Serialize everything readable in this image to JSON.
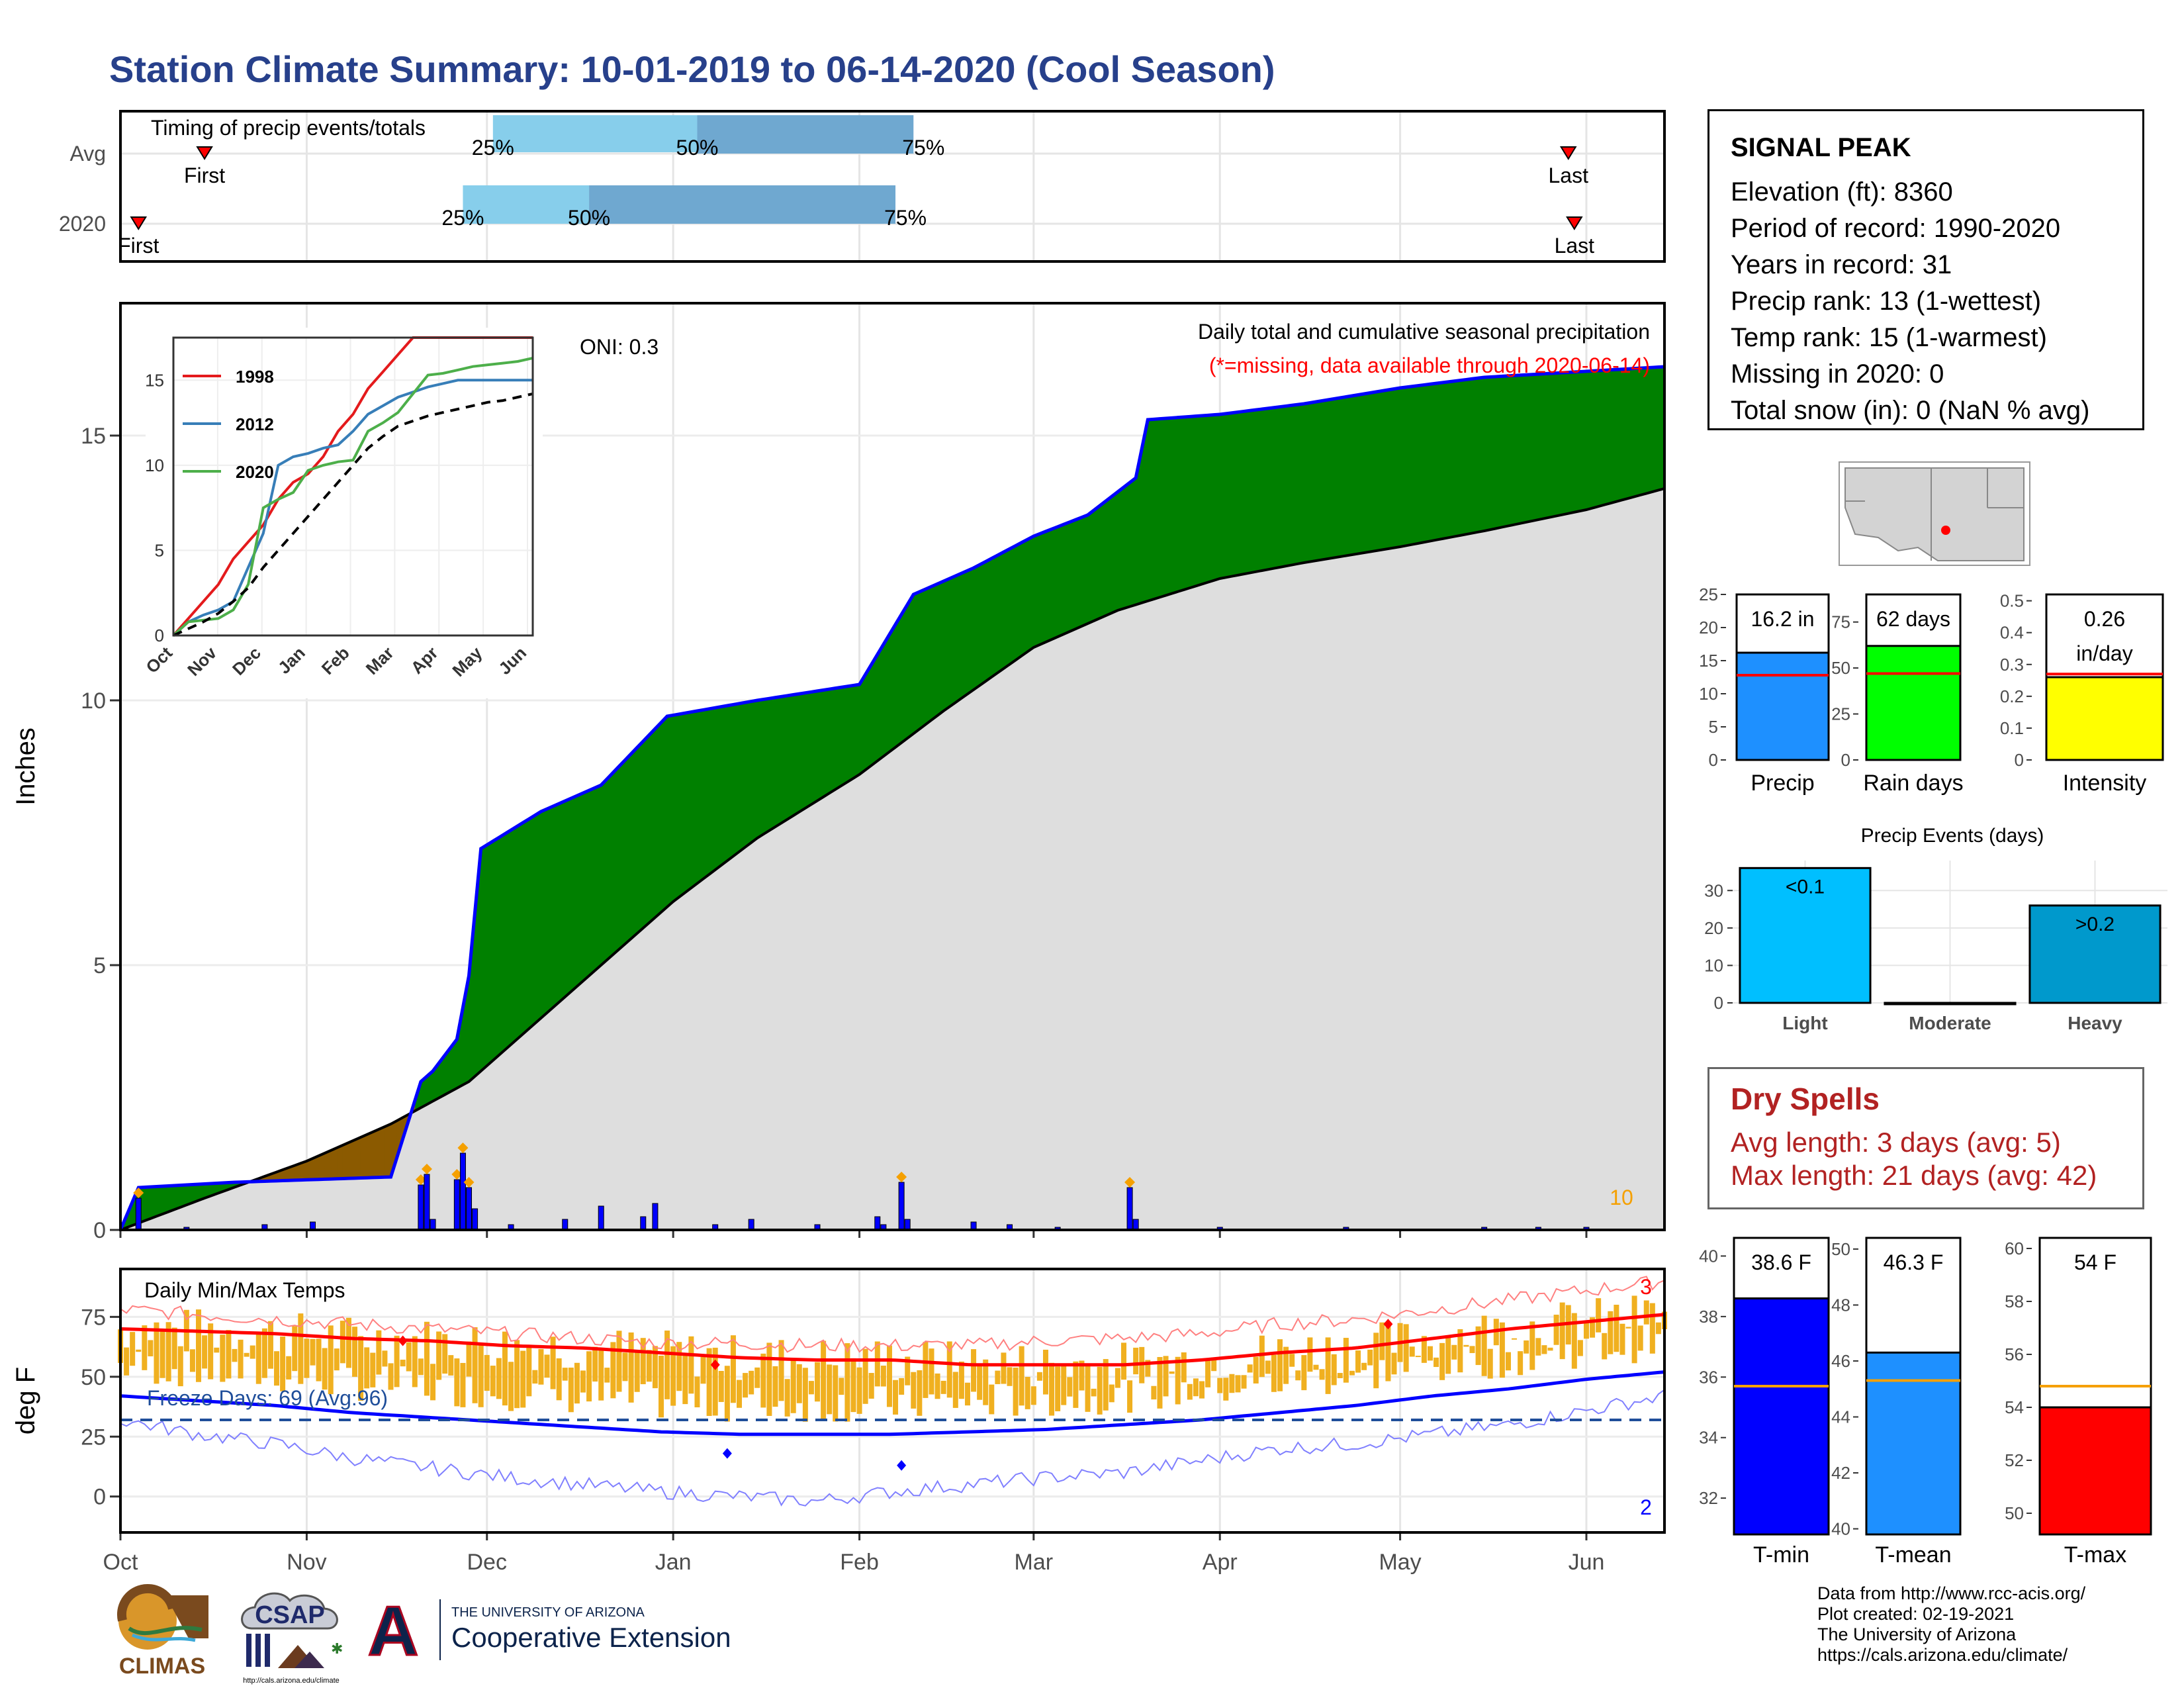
{
  "title": "Station Climate Summary: 10-01-2019 to 06-14-2020 (Cool Season)",
  "station": {
    "name": "SIGNAL PEAK",
    "lines": [
      "Elevation (ft): 8360",
      "Period of record: 1990-2020",
      "Years in record: 31",
      "Precip rank: 13 (1-wettest)",
      "Temp rank: 15 (1-warmest)",
      "Missing in 2020: 0",
      "Total snow (in): 0 (NaN % avg)"
    ]
  },
  "dry_spells": {
    "title": "Dry Spells",
    "avg_length": "Avg length: 3 days (avg: 5)",
    "max_length": "Max length: 21 days (avg: 42)"
  },
  "credits": [
    "Data from http://www.rcc-acis.org/",
    "Plot created: 02-19-2021",
    "The University of Arizona",
    "https://cals.arizona.edu/climate/"
  ],
  "logos": {
    "climas": "CLIMAS",
    "csap": "CSAP",
    "csap_url": "http://cals.arizona.edu/climate",
    "ua_small": "THE UNIVERSITY OF ARIZONA",
    "ua_big": "Cooperative Extension",
    "ua_letter": "A"
  },
  "colors": {
    "avg_cumulative": "#dedede",
    "above_avg": "#008000",
    "below_avg": "#8b5a00",
    "daily_precip": "#0000ff",
    "tmin": "#0000ff",
    "tmax": "#ff0000",
    "daily_range": "#f0b020",
    "quartile_light": "#87ceeb",
    "quartile_dark": "#6fa8d0"
  },
  "chart_data": [
    {
      "id": "timing",
      "type": "bar",
      "title": "Timing of precip events/totals",
      "rows": [
        {
          "label": "Avg",
          "first": "First",
          "last": "Last",
          "q25": "25%",
          "q50": "50%",
          "q75": "75%",
          "first_date": "2019-10-15",
          "q25_date": "2019-12-02",
          "q50_date": "2020-01-05",
          "q75_date": "2020-02-10",
          "last_date": "2020-05-29"
        },
        {
          "label": "2020",
          "first": "First",
          "last": "Last",
          "q25": "25%",
          "q50": "50%",
          "q75": "75%",
          "first_date": "2019-10-04",
          "q25_date": "2019-11-27",
          "q50_date": "2019-12-18",
          "q75_date": "2020-02-07",
          "last_date": "2020-05-30"
        }
      ]
    },
    {
      "id": "cumulative",
      "type": "area",
      "title": "Daily total and cumulative seasonal precipitation",
      "subtitle": "(*=missing, data available through 2020-06-14)",
      "ylabel": "Inches",
      "ylim": [
        0,
        17.5
      ],
      "yticks": [
        0,
        5,
        10,
        15
      ],
      "oni": "ONI: 0.3",
      "count_label": "10",
      "x_ticks": [
        "Oct",
        "Nov",
        "Dec",
        "Jan",
        "Feb",
        "Mar",
        "Apr",
        "May",
        "Jun"
      ],
      "x_tick_dates": [
        "2019-10-01",
        "2019-11-01",
        "2019-12-01",
        "2020-01-01",
        "2020-02-01",
        "2020-03-01",
        "2020-04-01",
        "2020-05-01",
        "2020-06-01"
      ],
      "series": [
        {
          "name": "Average cumulative",
          "x": [
            "2019-10-01",
            "2019-10-15",
            "2019-11-01",
            "2019-11-15",
            "2019-11-28",
            "2019-12-15",
            "2020-01-01",
            "2020-01-15",
            "2020-02-01",
            "2020-02-15",
            "2020-03-01",
            "2020-03-15",
            "2020-04-01",
            "2020-04-15",
            "2020-05-01",
            "2020-05-15",
            "2020-06-01",
            "2020-06-14"
          ],
          "y": [
            0,
            0.6,
            1.3,
            2.0,
            2.8,
            4.5,
            6.2,
            7.4,
            8.6,
            9.8,
            11.0,
            11.7,
            12.3,
            12.6,
            12.9,
            13.2,
            13.6,
            14.0
          ]
        },
        {
          "name": "2020 cumulative",
          "x": [
            "2019-10-01",
            "2019-10-04",
            "2019-10-20",
            "2019-11-15",
            "2019-11-20",
            "2019-11-22",
            "2019-11-26",
            "2019-11-28",
            "2019-11-30",
            "2019-12-10",
            "2019-12-20",
            "2019-12-31",
            "2020-01-15",
            "2020-02-01",
            "2020-02-10",
            "2020-02-20",
            "2020-03-01",
            "2020-03-10",
            "2020-03-18",
            "2020-03-20",
            "2020-04-01",
            "2020-04-15",
            "2020-05-01",
            "2020-05-15",
            "2020-06-14"
          ],
          "y": [
            0,
            0.8,
            0.9,
            1.0,
            2.8,
            3.0,
            3.6,
            4.8,
            7.2,
            7.9,
            8.4,
            9.7,
            10.0,
            10.3,
            12.0,
            12.5,
            13.1,
            13.5,
            14.2,
            15.3,
            15.4,
            15.6,
            15.9,
            16.1,
            16.3
          ]
        }
      ],
      "daily_precip": {
        "x": [
          "2019-10-04",
          "2019-10-12",
          "2019-10-25",
          "2019-11-02",
          "2019-11-20",
          "2019-11-21",
          "2019-11-22",
          "2019-11-26",
          "2019-11-27",
          "2019-11-28",
          "2019-11-29",
          "2019-12-05",
          "2019-12-14",
          "2019-12-20",
          "2019-12-27",
          "2019-12-29",
          "2020-01-08",
          "2020-01-14",
          "2020-01-25",
          "2020-02-04",
          "2020-02-05",
          "2020-02-08",
          "2020-02-09",
          "2020-02-20",
          "2020-02-26",
          "2020-03-05",
          "2020-03-17",
          "2020-03-18",
          "2020-04-01",
          "2020-04-22",
          "2020-05-15",
          "2020-05-24",
          "2020-06-01"
        ],
        "y": [
          0.6,
          0.05,
          0.1,
          0.15,
          0.85,
          1.05,
          0.2,
          0.95,
          1.45,
          0.8,
          0.4,
          0.1,
          0.2,
          0.45,
          0.25,
          0.5,
          0.1,
          0.2,
          0.1,
          0.25,
          0.1,
          0.9,
          0.2,
          0.15,
          0.1,
          0.05,
          0.8,
          0.2,
          0.05,
          0.05,
          0.05,
          0.05,
          0.05
        ]
      },
      "inset": {
        "type": "line",
        "yticks": [
          0,
          5,
          10,
          15
        ],
        "ylim": [
          0,
          17.5
        ],
        "x_ticks": [
          "Oct",
          "Nov",
          "Dec",
          "Jan",
          "Feb",
          "Mar",
          "Apr",
          "May",
          "Jun"
        ],
        "series": [
          {
            "name": "1998",
            "color": "#e41a1c",
            "y": [
              0,
              1,
              2,
              3,
              4.5,
              5.5,
              6.5,
              8,
              9,
              9.5,
              10.5,
              12,
              13,
              14.5,
              15.5,
              16.5,
              17.5,
              17.5,
              17.5,
              17.5,
              17.5,
              17.5,
              17.5,
              17.5,
              17.5
            ]
          },
          {
            "name": "2012",
            "color": "#377eb8",
            "y": [
              0,
              0.8,
              1.2,
              1.5,
              2,
              4,
              6,
              10,
              10.5,
              10.7,
              11,
              11.2,
              12,
              13,
              13.5,
              14,
              14.3,
              14.6,
              14.8,
              15,
              15,
              15,
              15,
              15,
              15
            ]
          },
          {
            "name": "2020",
            "color": "#4daf4a",
            "y": [
              0,
              0.8,
              0.9,
              1,
              1.5,
              3,
              7.5,
              8,
              8.4,
              9.7,
              10,
              10.2,
              10.3,
              12,
              12.5,
              13.1,
              14.2,
              15.3,
              15.4,
              15.6,
              15.8,
              15.9,
              16,
              16.1,
              16.3
            ]
          },
          {
            "name": "Average",
            "color": "#000000",
            "y": [
              0,
              0.4,
              0.8,
              1.3,
              2,
              2.8,
              4,
              5,
              6,
              7,
              8,
              9,
              10,
              11,
              11.7,
              12.3,
              12.6,
              12.9,
              13.1,
              13.3,
              13.5,
              13.7,
              13.8,
              14,
              14.2
            ]
          }
        ]
      }
    },
    {
      "id": "temps",
      "type": "line",
      "title": "Daily Min/Max Temps",
      "ylabel": "deg F",
      "ylim": [
        -15,
        95
      ],
      "yticks": [
        0,
        25,
        50,
        75
      ],
      "freeze_label": "Freeze Days: 69 (Avg:96)",
      "freeze_line": 32,
      "record_high_count": "3",
      "record_low_count": "2",
      "x_ticks": [
        "Oct",
        "Nov",
        "Dec",
        "Jan",
        "Feb",
        "Mar",
        "Apr",
        "May",
        "Jun"
      ],
      "series": [
        {
          "name": "Avg Tmax",
          "values": [
            70,
            69,
            68,
            66,
            65,
            63,
            62,
            60,
            58,
            57,
            57,
            55,
            55,
            55,
            57,
            60,
            62,
            66,
            70,
            73,
            76
          ]
        },
        {
          "name": "Avg Tmin",
          "values": [
            42,
            40,
            38,
            35,
            33,
            31,
            29,
            27,
            26,
            26,
            26,
            27,
            28,
            30,
            32,
            35,
            38,
            42,
            45,
            49,
            52
          ]
        },
        {
          "name": "Record Tmax",
          "values": [
            78,
            76,
            74,
            72,
            70,
            68,
            66,
            64,
            64,
            63,
            63,
            63,
            65,
            66,
            68,
            72,
            74,
            78,
            82,
            86,
            90
          ]
        },
        {
          "name": "Record Tmin",
          "values": [
            32,
            26,
            22,
            16,
            12,
            8,
            5,
            2,
            0,
            -2,
            2,
            5,
            8,
            10,
            15,
            20,
            22,
            26,
            30,
            36,
            42
          ]
        }
      ]
    },
    {
      "id": "summary-precip",
      "type": "bar",
      "categories": [
        "Precip",
        "Rain days",
        "Intensity"
      ],
      "panels": [
        {
          "category": "Precip",
          "value": 16.2,
          "label": "16.2 in",
          "avg": 12.8,
          "yticks": [
            0,
            5,
            10,
            15,
            20,
            25
          ],
          "ylim": [
            0,
            25
          ],
          "color": "#1e90ff"
        },
        {
          "category": "Rain days",
          "value": 62,
          "label": "62 days",
          "avg": 47,
          "yticks": [
            0,
            25,
            50,
            75
          ],
          "ylim": [
            0,
            90
          ],
          "color": "#00ff00"
        },
        {
          "category": "Intensity",
          "value": 0.26,
          "label": "0.26 in/day",
          "avg": 0.27,
          "yticks": [
            0.0,
            0.1,
            0.2,
            0.3,
            0.4,
            0.5
          ],
          "ylim": [
            0,
            0.52
          ],
          "color": "#ffff00"
        }
      ]
    },
    {
      "id": "precip-events",
      "type": "bar",
      "title": "Precip Events (days)",
      "categories": [
        "Light",
        "Moderate",
        "Heavy"
      ],
      "values": [
        36,
        0,
        26
      ],
      "bar_labels": [
        "<0.1",
        "",
        ">0.2"
      ],
      "yticks": [
        0,
        10,
        20,
        30
      ],
      "ylim": [
        0,
        38
      ]
    },
    {
      "id": "summary-temp",
      "type": "bar",
      "categories": [
        "T-min",
        "T-mean",
        "T-max"
      ],
      "panels": [
        {
          "category": "T-min",
          "value": 38.6,
          "label": "38.6 F",
          "avg": 35.7,
          "yticks": [
            32,
            34,
            36,
            38,
            40
          ],
          "ylim": [
            30.8,
            40.6
          ],
          "color": "#0000ff"
        },
        {
          "category": "T-mean",
          "value": 46.3,
          "label": "46.3 F",
          "avg": 45.3,
          "yticks": [
            40,
            42,
            44,
            46,
            48,
            50
          ],
          "ylim": [
            39.8,
            50.4
          ],
          "color": "#1e90ff"
        },
        {
          "category": "T-max",
          "value": 54,
          "label": "54 F",
          "avg": 54.8,
          "yticks": [
            50,
            52,
            54,
            56,
            58,
            60
          ],
          "ylim": [
            49.2,
            60.4
          ],
          "color": "#ff0000"
        }
      ]
    }
  ]
}
